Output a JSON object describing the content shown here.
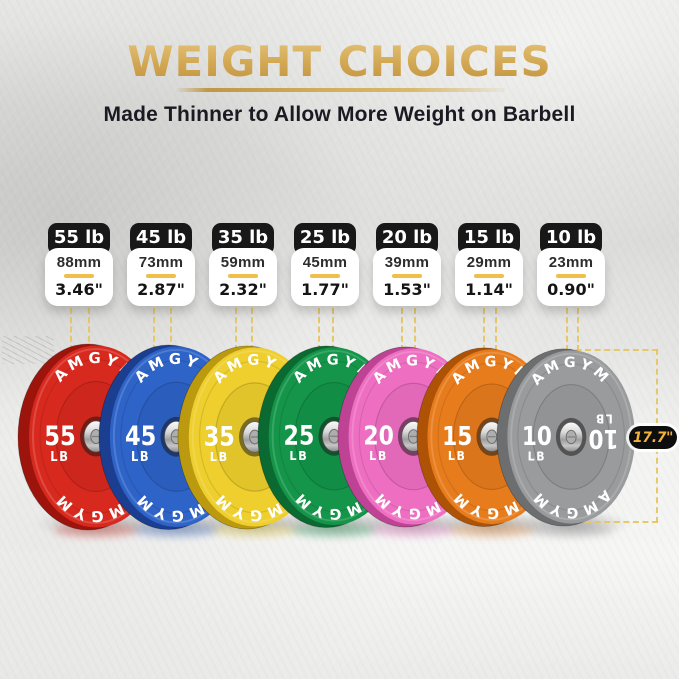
{
  "header": {
    "title": "WEIGHT CHOICES",
    "subtitle": "Made Thinner to Allow More Weight on Barbell"
  },
  "brand": "AMGYM",
  "diameter": {
    "label": "17.7\""
  },
  "plates": [
    {
      "badge": "55 lb",
      "mm": "88mm",
      "inches": "3.46\"",
      "num": "55",
      "unit": "LB",
      "face": "#d8291e",
      "edge": "#9d140d"
    },
    {
      "badge": "45 lb",
      "mm": "73mm",
      "inches": "2.87\"",
      "num": "45",
      "unit": "LB",
      "face": "#2e63c8",
      "edge": "#1b3e90"
    },
    {
      "badge": "35 lb",
      "mm": "59mm",
      "inches": "2.32\"",
      "num": "35",
      "unit": "LB",
      "face": "#eecf2d",
      "edge": "#bc9a10"
    },
    {
      "badge": "25 lb",
      "mm": "45mm",
      "inches": "1.77\"",
      "num": "25",
      "unit": "LB",
      "face": "#149549",
      "edge": "#0a6a31"
    },
    {
      "badge": "20 lb",
      "mm": "39mm",
      "inches": "1.53\"",
      "num": "20",
      "unit": "LB",
      "face": "#ee6fc2",
      "edge": "#bf4394"
    },
    {
      "badge": "15 lb",
      "mm": "29mm",
      "inches": "1.14\"",
      "num": "15",
      "unit": "LB",
      "face": "#e77c1d",
      "edge": "#ae5306"
    },
    {
      "badge": "10 lb",
      "mm": "23mm",
      "inches": "0.90\"",
      "num": "10",
      "unit": "LB",
      "face": "#9a9b9d",
      "edge": "#6d6e70",
      "mirror": true
    }
  ],
  "colors": {
    "gold_accent": "#d2a854",
    "dash_line": "#e6c565",
    "badge_bg": "#181818",
    "card_bg": "#ffffff",
    "divider_gold": "#f0bf4b",
    "diameter_text": "#f2b23a",
    "plate_text": "#ffffff"
  }
}
